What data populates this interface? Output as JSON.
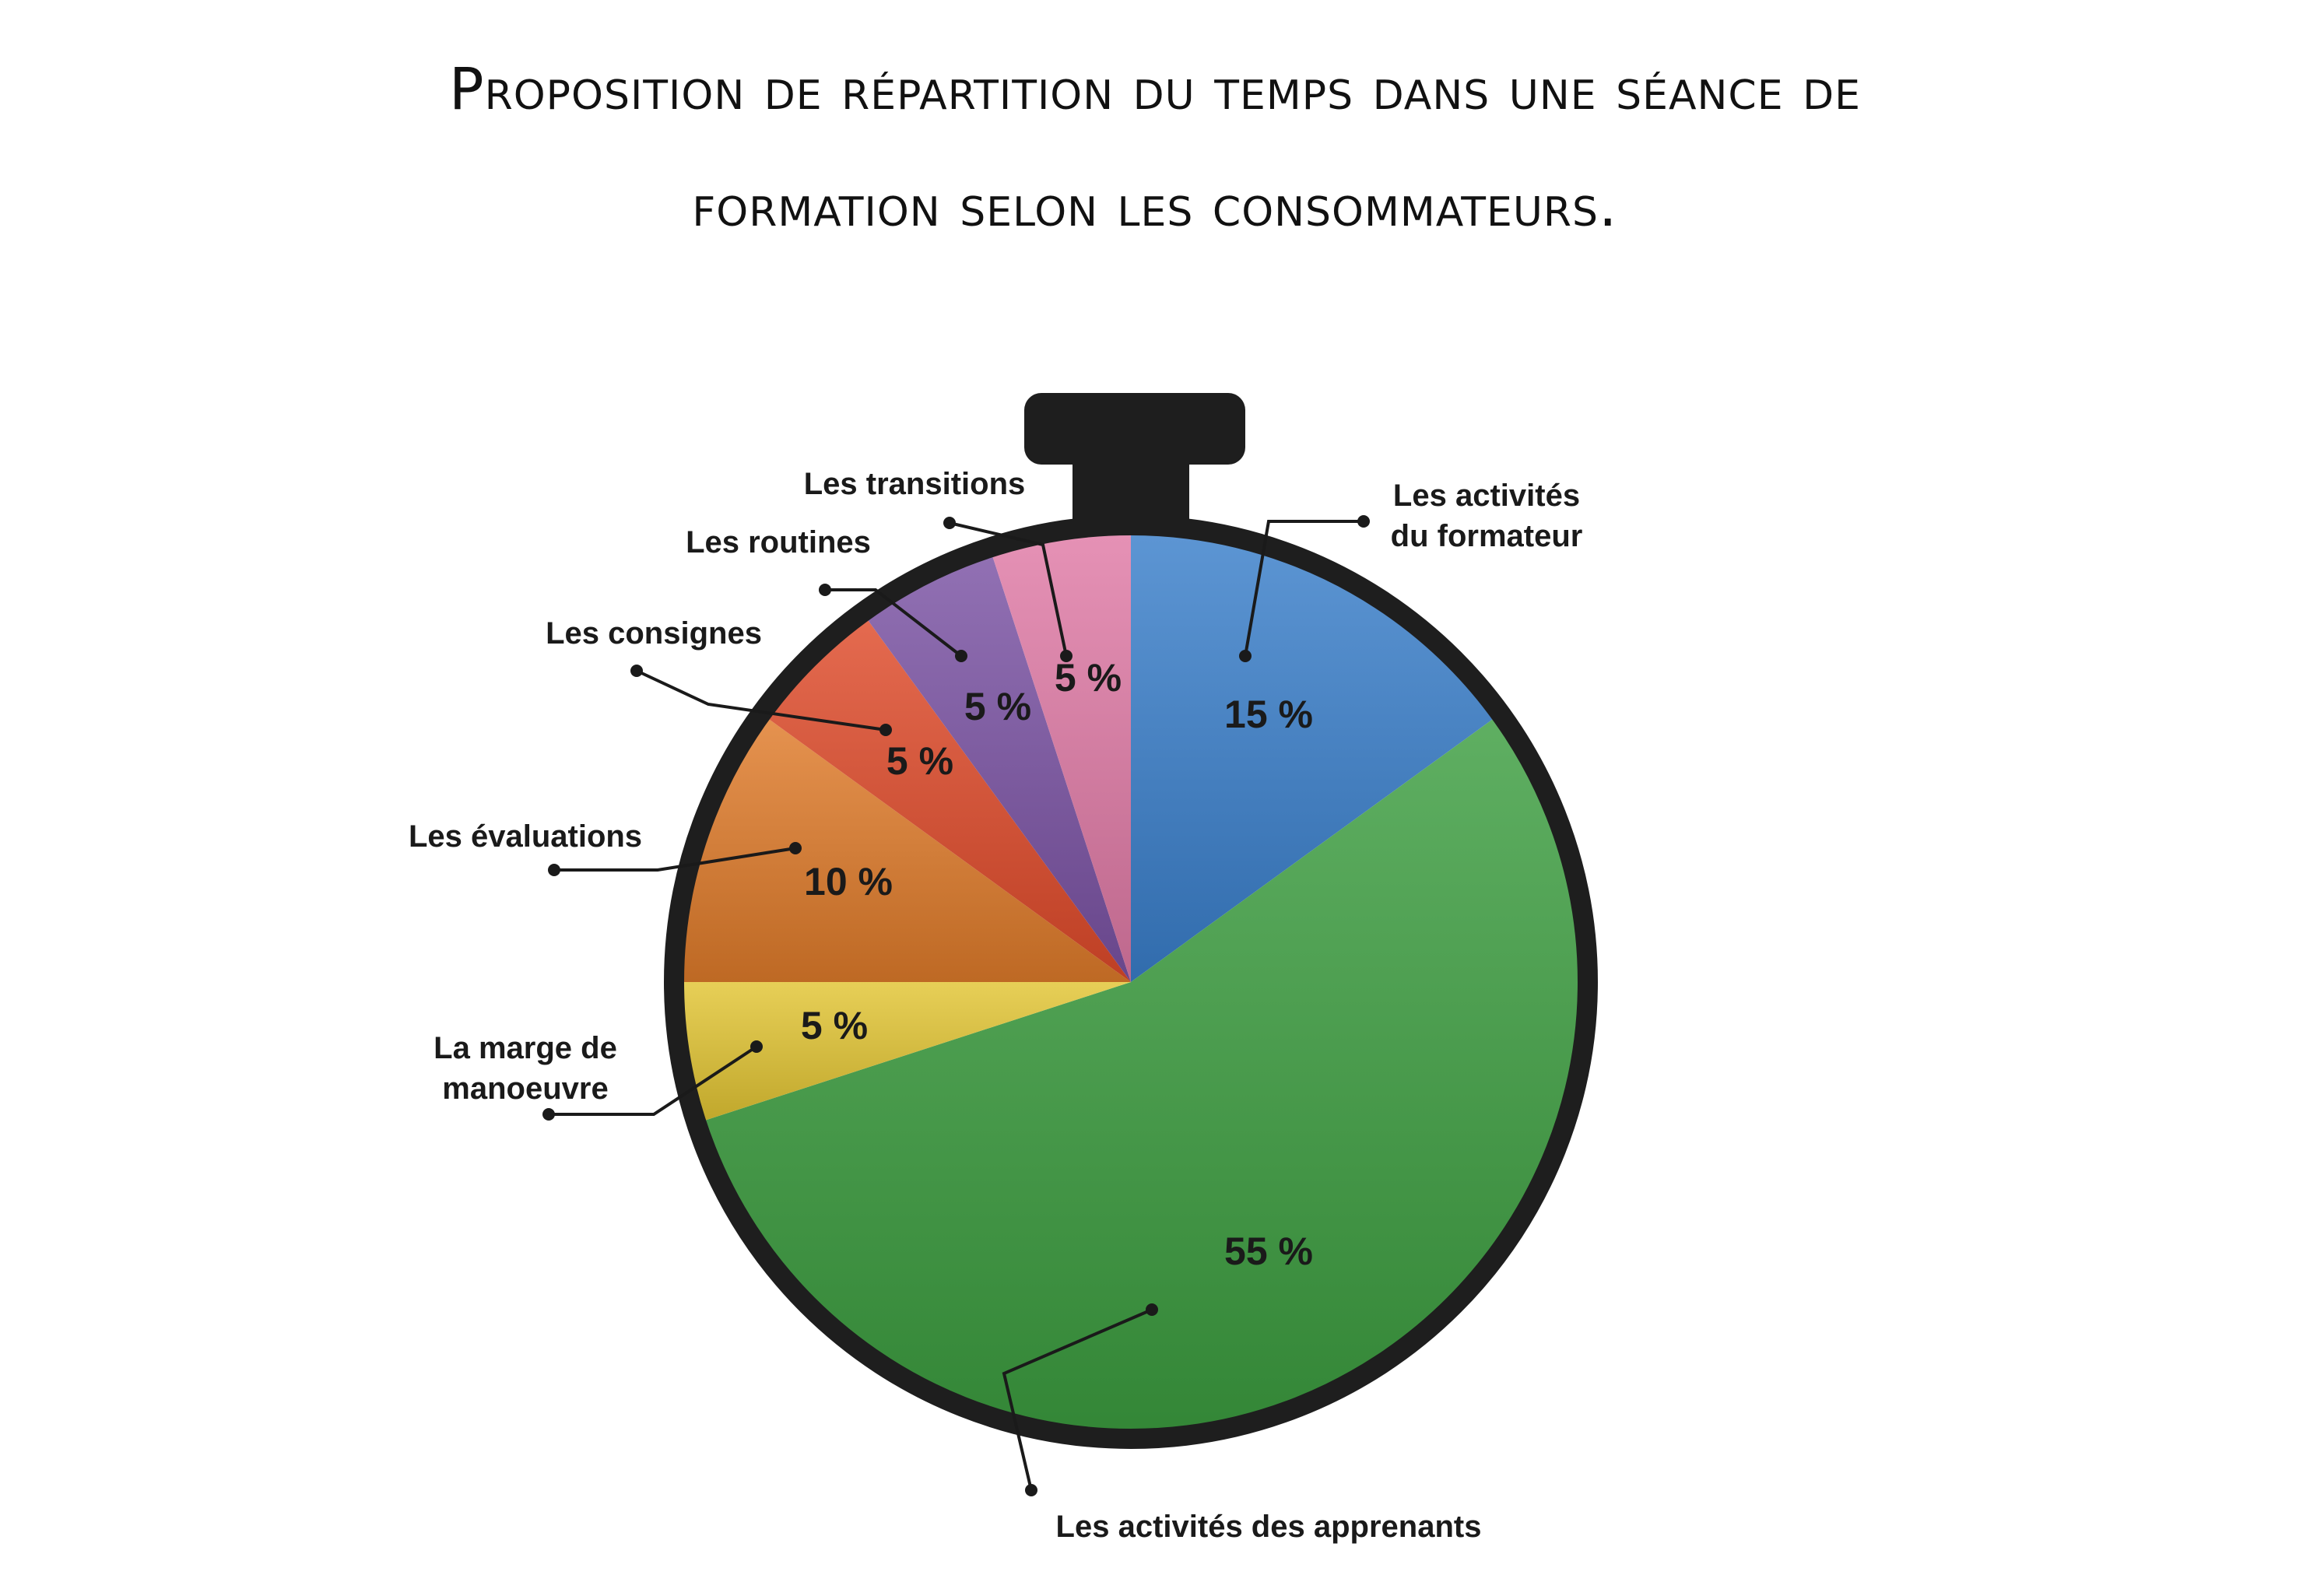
{
  "chart_data": {
    "type": "pie",
    "title": "Proposition de répartition du temps dans une séance de formation selon les consommateurs.",
    "title_lines": [
      "Proposition de répartition du temps dans une séance de",
      "formation selon les consommateurs."
    ],
    "start": "12 o'clock",
    "direction": "clockwise",
    "slices": [
      {
        "key": "formateur",
        "label_lines": [
          "Les activités",
          "du formateur"
        ],
        "value": 15,
        "value_label": "15 %",
        "color": "#3a7fcb"
      },
      {
        "key": "apprenants",
        "label_lines": [
          "Les activités des apprenants"
        ],
        "value": 55,
        "value_label": "55 %",
        "color": "#3c9e40"
      },
      {
        "key": "marge",
        "label_lines": [
          "La marge de",
          "manoeuvre"
        ],
        "value": 5,
        "value_label": "5 %",
        "color": "#e2c432"
      },
      {
        "key": "evaluations",
        "label_lines": [
          "Les évaluations"
        ],
        "value": 10,
        "value_label": "10 %",
        "color": "#e07b2a"
      },
      {
        "key": "consignes",
        "label_lines": [
          "Les consignes"
        ],
        "value": 5,
        "value_label": "5 %",
        "color": "#df4a2a"
      },
      {
        "key": "routines",
        "label_lines": [
          "Les routines"
        ],
        "value": 5,
        "value_label": "5 %",
        "color": "#7a52a3"
      },
      {
        "key": "transitions",
        "label_lines": [
          "Les transitions"
        ],
        "value": 5,
        "value_label": "5 %",
        "color": "#e07aa6"
      }
    ],
    "frame_color": "#1e1e1e"
  }
}
